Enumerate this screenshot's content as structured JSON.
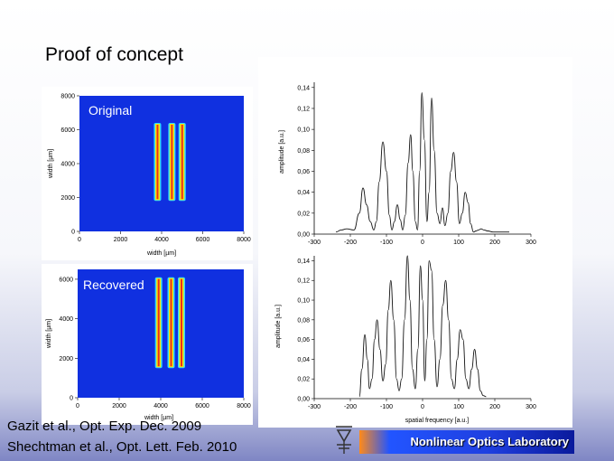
{
  "slide": {
    "title": "Proof of concept",
    "citation_1": "Gazit et al., Opt. Exp.  Dec. 2009",
    "citation_2": "Shechtman et al., Opt. Lett. Feb. 2010",
    "lab_name": "Nonlinear Optics Laboratory",
    "logo_icon": "technion-logo-icon"
  },
  "chart_data": [
    {
      "type": "heatmap",
      "label": "Original",
      "xlabel": "width [µm]",
      "ylabel": "width [µm]",
      "xticks": [
        "0",
        "2000",
        "4000",
        "6000",
        "8000"
      ],
      "yticks": [
        "0",
        "2000",
        "4000",
        "6000",
        "8000"
      ],
      "xlim": [
        0,
        8000
      ],
      "ylim": [
        0,
        8000
      ],
      "stripes": [
        {
          "x": 3800,
          "y0": 1800,
          "y1": 6400
        },
        {
          "x": 4500,
          "y0": 1800,
          "y1": 6400
        },
        {
          "x": 5000,
          "y0": 1800,
          "y1": 6400
        }
      ]
    },
    {
      "type": "line",
      "xlabel": "",
      "ylabel": "amplitude [a.u.]",
      "xticks": [
        "-300",
        "-200",
        "-100",
        "0",
        "100",
        "200",
        "300"
      ],
      "yticks": [
        "0,00",
        "0,02",
        "0,04",
        "0,06",
        "0,08",
        "0,10",
        "0,12",
        "0,14"
      ],
      "xlim": [
        -300,
        300
      ],
      "ylim": [
        0,
        0.145
      ],
      "x": [
        -240,
        -225,
        -210,
        -190,
        -175,
        -165,
        -155,
        -145,
        -135,
        -128,
        -120,
        -110,
        -100,
        -92,
        -85,
        -78,
        -70,
        -62,
        -55,
        -48,
        -40,
        -33,
        -27,
        -20,
        -14,
        -8,
        -2,
        5,
        12,
        18,
        25,
        32,
        40,
        48,
        55,
        62,
        70,
        78,
        86,
        94,
        102,
        110,
        118,
        126,
        133,
        141,
        148,
        155,
        162,
        170,
        180,
        195,
        210,
        225,
        240
      ],
      "values": [
        0.002,
        0.004,
        0.005,
        0.004,
        0.02,
        0.044,
        0.028,
        0.012,
        0.004,
        0.012,
        0.05,
        0.088,
        0.06,
        0.018,
        0.004,
        0.012,
        0.028,
        0.014,
        0.004,
        0.018,
        0.068,
        0.095,
        0.06,
        0.012,
        0.004,
        0.06,
        0.135,
        0.09,
        0.012,
        0.04,
        0.13,
        0.08,
        0.02,
        0.01,
        0.025,
        0.008,
        0.02,
        0.06,
        0.078,
        0.05,
        0.01,
        0.02,
        0.04,
        0.03,
        0.01,
        0.002,
        0.003,
        0.004,
        0.005,
        0.004,
        0.003,
        0.002,
        0.002,
        0.002,
        0.002
      ]
    },
    {
      "type": "heatmap",
      "label": "Recovered",
      "xlabel": "width [µm]",
      "ylabel": "width [µm]",
      "xticks": [
        "0",
        "2000",
        "4000",
        "6000",
        "8000"
      ],
      "yticks": [
        "0",
        "2000",
        "4000",
        "6000"
      ],
      "xlim": [
        0,
        8000
      ],
      "ylim": [
        0,
        6500
      ],
      "stripes": [
        {
          "x": 3900,
          "y0": 1500,
          "y1": 6100
        },
        {
          "x": 4500,
          "y0": 1500,
          "y1": 6100
        },
        {
          "x": 5000,
          "y0": 1500,
          "y1": 6100
        }
      ]
    },
    {
      "type": "line",
      "xlabel": "spatial frequency [a.u.]",
      "ylabel": "amplitude [a.u.]",
      "xticks": [
        "-300",
        "-200",
        "-100",
        "0",
        "100",
        "200",
        "300"
      ],
      "yticks": [
        "0,00",
        "0,02",
        "0,04",
        "0,06",
        "0,08",
        "0,10",
        "0,12",
        "0,14"
      ],
      "xlim": [
        -300,
        300
      ],
      "ylim": [
        0,
        0.145
      ],
      "x": [
        -175,
        -168,
        -160,
        -153,
        -147,
        -140,
        -133,
        -126,
        -118,
        -110,
        -102,
        -95,
        -88,
        -80,
        -72,
        -65,
        -58,
        -50,
        -42,
        -35,
        -28,
        -20,
        -13,
        -6,
        0,
        6,
        12,
        18,
        25,
        32,
        40,
        48,
        56,
        64,
        72,
        80,
        88,
        96,
        104,
        112,
        120,
        128,
        136,
        144,
        152,
        160,
        168,
        176
      ],
      "values": [
        0.002,
        0.03,
        0.065,
        0.04,
        0.01,
        0.02,
        0.06,
        0.08,
        0.05,
        0.018,
        0.035,
        0.09,
        0.12,
        0.08,
        0.02,
        0.008,
        0.02,
        0.08,
        0.145,
        0.1,
        0.03,
        0.01,
        0.05,
        0.135,
        0.1,
        0.018,
        0.06,
        0.14,
        0.13,
        0.06,
        0.012,
        0.04,
        0.095,
        0.12,
        0.08,
        0.02,
        0.01,
        0.04,
        0.07,
        0.06,
        0.02,
        0.01,
        0.03,
        0.05,
        0.03,
        0.008,
        0.003,
        0.002
      ]
    }
  ]
}
